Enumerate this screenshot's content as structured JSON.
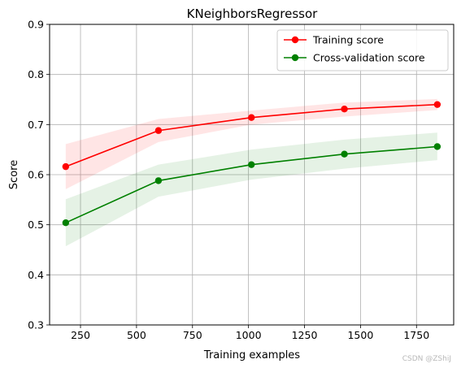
{
  "chart_data": {
    "type": "line",
    "title": "KNeighborsRegressor",
    "xlabel": "Training examples",
    "ylabel": "Score",
    "xlim": [
      112,
      1916
    ],
    "ylim": [
      0.3,
      0.9
    ],
    "xticks": [
      250,
      500,
      750,
      1000,
      1250,
      1500,
      1750
    ],
    "yticks": [
      0.3,
      0.4,
      0.5,
      0.6,
      0.7,
      0.8,
      0.9
    ],
    "grid": true,
    "legend_position": "top-right",
    "x": [
      184,
      598,
      1013,
      1428,
      1843
    ],
    "series": [
      {
        "name": "Training score",
        "color": "#ff0000",
        "values": [
          0.616,
          0.688,
          0.714,
          0.731,
          0.74
        ],
        "lower": [
          0.571,
          0.665,
          0.7,
          0.716,
          0.729
        ],
        "upper": [
          0.661,
          0.711,
          0.728,
          0.744,
          0.751
        ]
      },
      {
        "name": "Cross-validation score",
        "color": "#008000",
        "values": [
          0.504,
          0.588,
          0.62,
          0.641,
          0.656
        ],
        "lower": [
          0.457,
          0.556,
          0.59,
          0.612,
          0.629
        ],
        "upper": [
          0.551,
          0.62,
          0.65,
          0.67,
          0.684
        ]
      }
    ]
  },
  "watermark": "CSDN @ZShiJ"
}
